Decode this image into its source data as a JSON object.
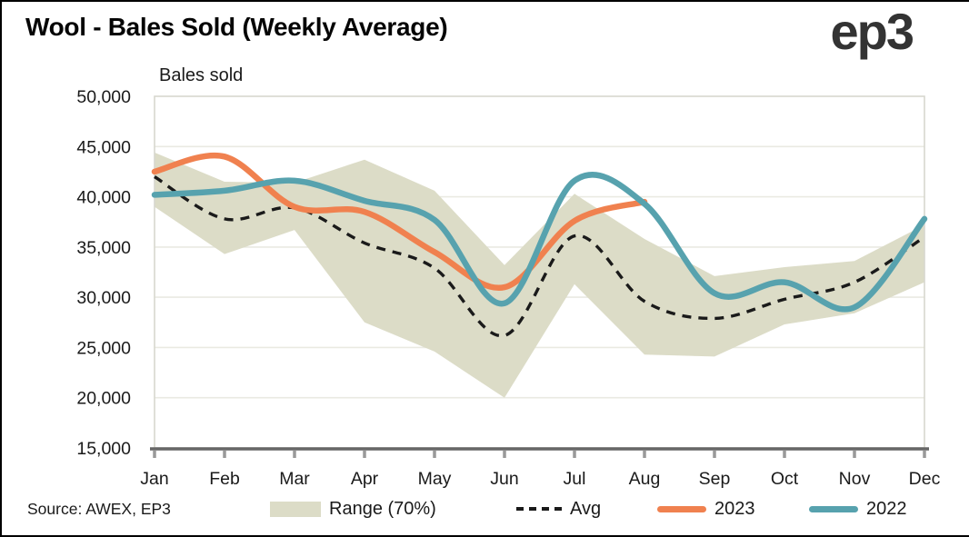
{
  "page": {
    "title": "Wool - Bales Sold (Weekly Average)",
    "logo_text": "ep3",
    "source_note": "Source: AWEX, EP3"
  },
  "legend": {
    "range_label": "Range (70%)",
    "avg_label": "Avg",
    "y2023_label": "2023",
    "y2022_label": "2022"
  },
  "colors": {
    "band": "#dcdcc7",
    "avg": "#1a1a1a",
    "y2023": "#f0814f",
    "y2022": "#57a2ae",
    "gridline": "#eaeae2",
    "plot_border": "#d7d7cf",
    "axis": "#666666",
    "tick": "#999999"
  },
  "chart_data": {
    "type": "line",
    "title": "Wool - Bales Sold (Weekly Average)",
    "ylabel": "Bales sold",
    "xlabel": "",
    "ylim": [
      15000,
      50000
    ],
    "ytick_values": [
      50000,
      45000,
      40000,
      35000,
      30000,
      25000,
      20000,
      15000
    ],
    "ytick_labels": [
      "50,000",
      "45,000",
      "40,000",
      "35,000",
      "30,000",
      "25,000",
      "20,000",
      "15,000"
    ],
    "categories": [
      "Jan",
      "Feb",
      "Mar",
      "Apr",
      "May",
      "Jun",
      "Jul",
      "Aug",
      "Sep",
      "Oct",
      "Nov",
      "Dec"
    ],
    "grid": "horizontal",
    "legend_position": "bottom",
    "series": [
      {
        "name": "Range (70%)",
        "type": "band",
        "upper": [
          44400,
          41500,
          41400,
          43700,
          40600,
          33200,
          40300,
          35800,
          32100,
          33000,
          33600,
          37200
        ],
        "lower": [
          39000,
          34300,
          36700,
          27500,
          24600,
          20000,
          31300,
          24300,
          24100,
          27300,
          28400,
          31500
        ]
      },
      {
        "name": "Avg",
        "type": "dashed-line",
        "values": [
          42000,
          37800,
          38900,
          35400,
          32900,
          26200,
          36100,
          29600,
          27900,
          29800,
          31500,
          36000
        ]
      },
      {
        "name": "2023",
        "type": "line",
        "values": [
          42500,
          44000,
          39000,
          38500,
          34500,
          31000,
          37600,
          39500
        ]
      },
      {
        "name": "2022",
        "type": "line",
        "values": [
          40200,
          40600,
          41600,
          39600,
          37700,
          29400,
          41600,
          39300,
          30400,
          31500,
          29000,
          37800
        ]
      }
    ]
  }
}
